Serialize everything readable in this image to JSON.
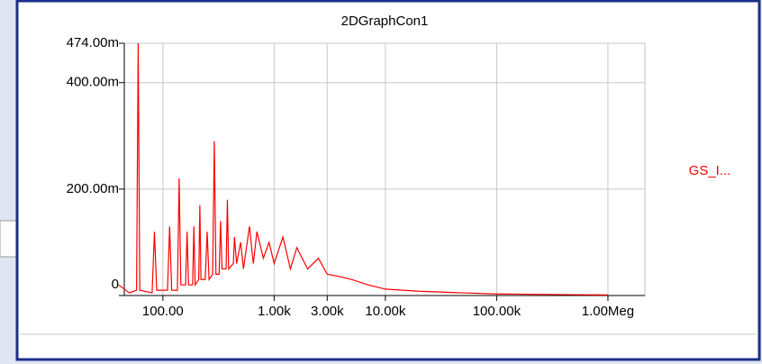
{
  "chart_data": {
    "type": "line",
    "title": "2DGraphCon1",
    "x": [
      40,
      50,
      58,
      60,
      62,
      80,
      84,
      88,
      110,
      115,
      120,
      135,
      140,
      145,
      160,
      165,
      170,
      185,
      190,
      195,
      210,
      215,
      220,
      240,
      250,
      260,
      280,
      290,
      300,
      320,
      330,
      340,
      370,
      380,
      390,
      430,
      440,
      460,
      500,
      530,
      600,
      650,
      700,
      800,
      900,
      1000,
      1200,
      1400,
      1600,
      2000,
      2500,
      3000,
      4000,
      5000,
      7000,
      10000,
      20000,
      50000,
      100000,
      300000,
      1000000
    ],
    "series": [
      {
        "name": "GS_I...",
        "color": "#ff0000",
        "values": [
          0.02,
          0.005,
          0.01,
          0.474,
          0.01,
          0.005,
          0.12,
          0.01,
          0.01,
          0.13,
          0.01,
          0.01,
          0.22,
          0.02,
          0.02,
          0.12,
          0.02,
          0.02,
          0.13,
          0.02,
          0.03,
          0.17,
          0.03,
          0.03,
          0.12,
          0.03,
          0.04,
          0.29,
          0.04,
          0.04,
          0.14,
          0.05,
          0.05,
          0.18,
          0.05,
          0.06,
          0.11,
          0.06,
          0.1,
          0.05,
          0.13,
          0.06,
          0.12,
          0.07,
          0.1,
          0.06,
          0.11,
          0.05,
          0.09,
          0.05,
          0.07,
          0.04,
          0.035,
          0.03,
          0.02,
          0.012,
          0.008,
          0.005,
          0.003,
          0.002,
          0.001
        ]
      }
    ],
    "xlim": [
      45,
      2150000
    ],
    "xscale": "log",
    "xticks": [
      {
        "value": 100,
        "label": "100.00"
      },
      {
        "value": 1000,
        "label": "1.00k"
      },
      {
        "value": 3000,
        "label": "3.00k"
      },
      {
        "value": 10000,
        "label": "10.00k"
      },
      {
        "value": 100000,
        "label": "100.00k"
      },
      {
        "value": 1000000,
        "label": "1.00Meg"
      }
    ],
    "ylim": [
      0,
      0.474
    ],
    "yticks": [
      0,
      {
        "value": 0.2,
        "label": "200.00m"
      },
      {
        "value": 0.4,
        "label": "400.00m"
      },
      {
        "value": 0.474,
        "label": "474.00m"
      }
    ],
    "grid": true
  }
}
